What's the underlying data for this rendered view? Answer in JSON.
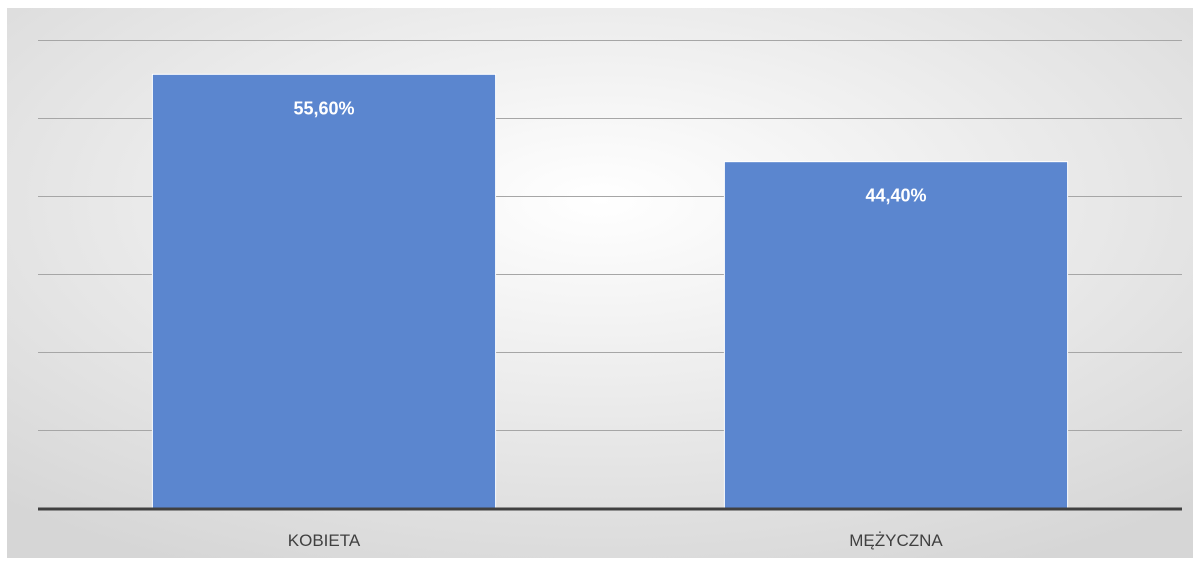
{
  "chart_data": {
    "type": "bar",
    "categories": [
      "KOBIETA",
      "MĘŻYCZNA"
    ],
    "values": [
      55.6,
      44.4
    ],
    "data_labels": [
      "55,60%",
      "44,40%"
    ],
    "title": "",
    "xlabel": "",
    "ylabel": "",
    "ylim": [
      0,
      60
    ],
    "y_gridline_step": 10,
    "grid": true,
    "legend": "none",
    "colors": {
      "bar": "#5b86cf",
      "bar_edge": "#ffffff",
      "gridline": "#a6a6a6",
      "baseline": "#404040",
      "background_center": "#ffffff",
      "background_edge": "#d6d6d6",
      "data_label": "#ffffff",
      "category_label": "#404040"
    }
  }
}
